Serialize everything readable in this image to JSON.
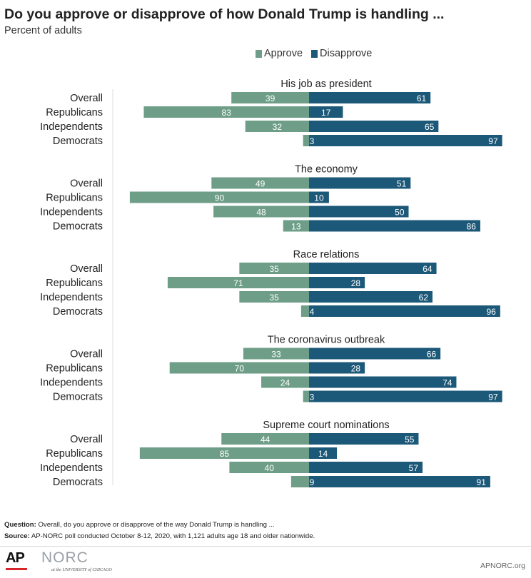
{
  "title": "Do you approve or disapprove of how Donald Trump is handling ...",
  "subtitle": "Percent of adults",
  "legend": {
    "approve": "Approve",
    "disapprove": "Disapprove"
  },
  "colors": {
    "approve": "#6e9e88",
    "disapprove": "#1c5878"
  },
  "chart_data": {
    "type": "bar",
    "orientation": "horizontal-diverging",
    "categories": [
      "Overall",
      "Republicans",
      "Independents",
      "Democrats"
    ],
    "xlim": [
      -100,
      100
    ],
    "grid": false,
    "legend_position": "top",
    "groups": [
      {
        "title": "His job as president",
        "approve": [
          39,
          83,
          32,
          3
        ],
        "disapprove": [
          61,
          17,
          65,
          97
        ]
      },
      {
        "title": "The economy",
        "approve": [
          49,
          90,
          48,
          13
        ],
        "disapprove": [
          51,
          10,
          50,
          86
        ]
      },
      {
        "title": "Race relations",
        "approve": [
          35,
          71,
          35,
          4
        ],
        "disapprove": [
          64,
          28,
          62,
          96
        ]
      },
      {
        "title": "The coronavirus outbreak",
        "approve": [
          33,
          70,
          24,
          3
        ],
        "disapprove": [
          66,
          28,
          74,
          97
        ]
      },
      {
        "title": "Supreme court nominations",
        "approve": [
          44,
          85,
          40,
          9
        ],
        "disapprove": [
          55,
          14,
          57,
          91
        ]
      }
    ]
  },
  "footer": {
    "question_label": "Question:",
    "question_text": " Overall, do you approve or disapprove of the way Donald Trump is handling ...",
    "source_label": "Source:",
    "source_text": " AP-NORC poll conducted October 8-12, 2020, with 1,121 adults age 18 and older nationwide."
  },
  "logos": {
    "ap": "AP",
    "norc": "NORC",
    "norc_sub": "at the UNIVERSITY of CHICAGO"
  },
  "site": "APNORC.org"
}
